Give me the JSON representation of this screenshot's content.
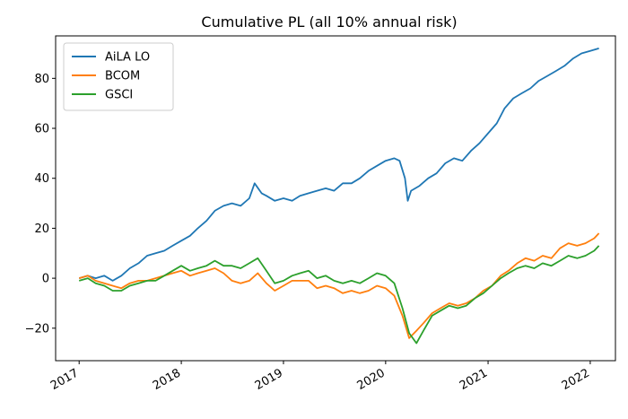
{
  "chart_data": {
    "type": "line",
    "title": "Cumulative PL (all 10% annual risk)",
    "xlabel": "",
    "ylabel": "",
    "x_type": "date",
    "xlim": [
      "2016-10-09",
      "2022-04-01"
    ],
    "ylim": [
      -33,
      97
    ],
    "x_ticks": [
      {
        "date": "2017-01-01",
        "label": "2017"
      },
      {
        "date": "2018-01-01",
        "label": "2018"
      },
      {
        "date": "2019-01-01",
        "label": "2019"
      },
      {
        "date": "2020-01-01",
        "label": "2020"
      },
      {
        "date": "2021-01-01",
        "label": "2021"
      },
      {
        "date": "2022-01-01",
        "label": "2022"
      }
    ],
    "y_ticks": [
      {
        "value": -20,
        "label": "−20"
      },
      {
        "value": 0,
        "label": "0"
      },
      {
        "value": 20,
        "label": "20"
      },
      {
        "value": 40,
        "label": "40"
      },
      {
        "value": 60,
        "label": "60"
      },
      {
        "value": 80,
        "label": "80"
      }
    ],
    "grid": false,
    "legend_position": "top-left",
    "series": [
      {
        "name": "AiLA LO",
        "color": "#1f77b4",
        "points": [
          [
            "2017-01-01",
            0
          ],
          [
            "2017-02-01",
            1
          ],
          [
            "2017-03-01",
            0
          ],
          [
            "2017-04-01",
            1
          ],
          [
            "2017-05-01",
            -1
          ],
          [
            "2017-06-01",
            1
          ],
          [
            "2017-07-01",
            4
          ],
          [
            "2017-08-01",
            6
          ],
          [
            "2017-09-01",
            9
          ],
          [
            "2017-10-01",
            10
          ],
          [
            "2017-11-01",
            11
          ],
          [
            "2017-12-01",
            13
          ],
          [
            "2018-01-01",
            15
          ],
          [
            "2018-02-01",
            17
          ],
          [
            "2018-03-01",
            20
          ],
          [
            "2018-04-01",
            23
          ],
          [
            "2018-05-01",
            27
          ],
          [
            "2018-06-01",
            29
          ],
          [
            "2018-07-01",
            30
          ],
          [
            "2018-08-01",
            29
          ],
          [
            "2018-09-01",
            32
          ],
          [
            "2018-09-20",
            38
          ],
          [
            "2018-10-15",
            34
          ],
          [
            "2018-11-01",
            33
          ],
          [
            "2018-12-01",
            31
          ],
          [
            "2019-01-01",
            32
          ],
          [
            "2019-02-01",
            31
          ],
          [
            "2019-03-01",
            33
          ],
          [
            "2019-04-01",
            34
          ],
          [
            "2019-05-01",
            35
          ],
          [
            "2019-06-01",
            36
          ],
          [
            "2019-07-01",
            35
          ],
          [
            "2019-08-01",
            38
          ],
          [
            "2019-09-01",
            38
          ],
          [
            "2019-10-01",
            40
          ],
          [
            "2019-11-01",
            43
          ],
          [
            "2019-12-01",
            45
          ],
          [
            "2020-01-01",
            47
          ],
          [
            "2020-02-01",
            48
          ],
          [
            "2020-02-20",
            47
          ],
          [
            "2020-03-10",
            40
          ],
          [
            "2020-03-20",
            31
          ],
          [
            "2020-04-01",
            35
          ],
          [
            "2020-05-01",
            37
          ],
          [
            "2020-06-01",
            40
          ],
          [
            "2020-07-01",
            42
          ],
          [
            "2020-08-01",
            46
          ],
          [
            "2020-09-01",
            48
          ],
          [
            "2020-10-01",
            47
          ],
          [
            "2020-11-01",
            51
          ],
          [
            "2020-12-01",
            54
          ],
          [
            "2021-01-01",
            58
          ],
          [
            "2021-02-01",
            62
          ],
          [
            "2021-03-01",
            68
          ],
          [
            "2021-04-01",
            72
          ],
          [
            "2021-05-01",
            74
          ],
          [
            "2021-06-01",
            76
          ],
          [
            "2021-07-01",
            79
          ],
          [
            "2021-08-01",
            81
          ],
          [
            "2021-09-01",
            83
          ],
          [
            "2021-10-01",
            85
          ],
          [
            "2021-11-01",
            88
          ],
          [
            "2021-12-01",
            90
          ],
          [
            "2022-01-01",
            91
          ],
          [
            "2022-02-01",
            92
          ]
        ]
      },
      {
        "name": "BCOM",
        "color": "#ff7f0e",
        "points": [
          [
            "2017-01-01",
            0
          ],
          [
            "2017-02-01",
            1
          ],
          [
            "2017-03-01",
            -1
          ],
          [
            "2017-04-01",
            -2
          ],
          [
            "2017-05-01",
            -3
          ],
          [
            "2017-06-01",
            -4
          ],
          [
            "2017-07-01",
            -2
          ],
          [
            "2017-08-01",
            -1
          ],
          [
            "2017-09-01",
            -1
          ],
          [
            "2017-10-01",
            0
          ],
          [
            "2017-11-01",
            1
          ],
          [
            "2017-12-01",
            2
          ],
          [
            "2018-01-01",
            3
          ],
          [
            "2018-02-01",
            1
          ],
          [
            "2018-03-01",
            2
          ],
          [
            "2018-04-01",
            3
          ],
          [
            "2018-05-01",
            4
          ],
          [
            "2018-06-01",
            2
          ],
          [
            "2018-07-01",
            -1
          ],
          [
            "2018-08-01",
            -2
          ],
          [
            "2018-09-01",
            -1
          ],
          [
            "2018-10-01",
            2
          ],
          [
            "2018-11-01",
            -2
          ],
          [
            "2018-12-01",
            -5
          ],
          [
            "2019-01-01",
            -3
          ],
          [
            "2019-02-01",
            -1
          ],
          [
            "2019-03-01",
            -1
          ],
          [
            "2019-04-01",
            -1
          ],
          [
            "2019-05-01",
            -4
          ],
          [
            "2019-06-01",
            -3
          ],
          [
            "2019-07-01",
            -4
          ],
          [
            "2019-08-01",
            -6
          ],
          [
            "2019-09-01",
            -5
          ],
          [
            "2019-10-01",
            -6
          ],
          [
            "2019-11-01",
            -5
          ],
          [
            "2019-12-01",
            -3
          ],
          [
            "2020-01-01",
            -4
          ],
          [
            "2020-02-01",
            -7
          ],
          [
            "2020-03-01",
            -15
          ],
          [
            "2020-03-25",
            -24
          ],
          [
            "2020-04-20",
            -21
          ],
          [
            "2020-05-15",
            -18
          ],
          [
            "2020-06-15",
            -14
          ],
          [
            "2020-07-15",
            -12
          ],
          [
            "2020-08-15",
            -10
          ],
          [
            "2020-09-15",
            -11
          ],
          [
            "2020-10-15",
            -10
          ],
          [
            "2020-11-15",
            -8
          ],
          [
            "2020-12-15",
            -5
          ],
          [
            "2021-01-15",
            -3
          ],
          [
            "2021-02-15",
            1
          ],
          [
            "2021-03-15",
            3
          ],
          [
            "2021-04-15",
            6
          ],
          [
            "2021-05-15",
            8
          ],
          [
            "2021-06-15",
            7
          ],
          [
            "2021-07-15",
            9
          ],
          [
            "2021-08-15",
            8
          ],
          [
            "2021-09-15",
            12
          ],
          [
            "2021-10-15",
            14
          ],
          [
            "2021-11-15",
            13
          ],
          [
            "2021-12-15",
            14
          ],
          [
            "2022-01-15",
            16
          ],
          [
            "2022-02-01",
            18
          ]
        ]
      },
      {
        "name": "GSCI",
        "color": "#2ca02c",
        "points": [
          [
            "2017-01-01",
            -1
          ],
          [
            "2017-02-01",
            0
          ],
          [
            "2017-03-01",
            -2
          ],
          [
            "2017-04-01",
            -3
          ],
          [
            "2017-05-01",
            -5
          ],
          [
            "2017-06-01",
            -5
          ],
          [
            "2017-07-01",
            -3
          ],
          [
            "2017-08-01",
            -2
          ],
          [
            "2017-09-01",
            -1
          ],
          [
            "2017-10-01",
            -1
          ],
          [
            "2017-11-01",
            1
          ],
          [
            "2017-12-01",
            3
          ],
          [
            "2018-01-01",
            5
          ],
          [
            "2018-02-01",
            3
          ],
          [
            "2018-03-01",
            4
          ],
          [
            "2018-04-01",
            5
          ],
          [
            "2018-05-01",
            7
          ],
          [
            "2018-06-01",
            5
          ],
          [
            "2018-07-01",
            5
          ],
          [
            "2018-08-01",
            4
          ],
          [
            "2018-09-01",
            6
          ],
          [
            "2018-10-01",
            8
          ],
          [
            "2018-11-01",
            3
          ],
          [
            "2018-12-01",
            -2
          ],
          [
            "2019-01-01",
            -1
          ],
          [
            "2019-02-01",
            1
          ],
          [
            "2019-03-01",
            2
          ],
          [
            "2019-04-01",
            3
          ],
          [
            "2019-05-01",
            0
          ],
          [
            "2019-06-01",
            1
          ],
          [
            "2019-07-01",
            -1
          ],
          [
            "2019-08-01",
            -2
          ],
          [
            "2019-09-01",
            -1
          ],
          [
            "2019-10-01",
            -2
          ],
          [
            "2019-11-01",
            0
          ],
          [
            "2019-12-01",
            2
          ],
          [
            "2020-01-01",
            1
          ],
          [
            "2020-02-01",
            -2
          ],
          [
            "2020-03-01",
            -12
          ],
          [
            "2020-03-25",
            -22
          ],
          [
            "2020-04-20",
            -26
          ],
          [
            "2020-05-15",
            -21
          ],
          [
            "2020-06-15",
            -15
          ],
          [
            "2020-07-15",
            -13
          ],
          [
            "2020-08-15",
            -11
          ],
          [
            "2020-09-15",
            -12
          ],
          [
            "2020-10-15",
            -11
          ],
          [
            "2020-11-15",
            -8
          ],
          [
            "2020-12-15",
            -6
          ],
          [
            "2021-01-15",
            -3
          ],
          [
            "2021-02-15",
            0
          ],
          [
            "2021-03-15",
            2
          ],
          [
            "2021-04-15",
            4
          ],
          [
            "2021-05-15",
            5
          ],
          [
            "2021-06-15",
            4
          ],
          [
            "2021-07-15",
            6
          ],
          [
            "2021-08-15",
            5
          ],
          [
            "2021-09-15",
            7
          ],
          [
            "2021-10-15",
            9
          ],
          [
            "2021-11-15",
            8
          ],
          [
            "2021-12-15",
            9
          ],
          [
            "2022-01-15",
            11
          ],
          [
            "2022-02-01",
            13
          ]
        ]
      }
    ]
  }
}
